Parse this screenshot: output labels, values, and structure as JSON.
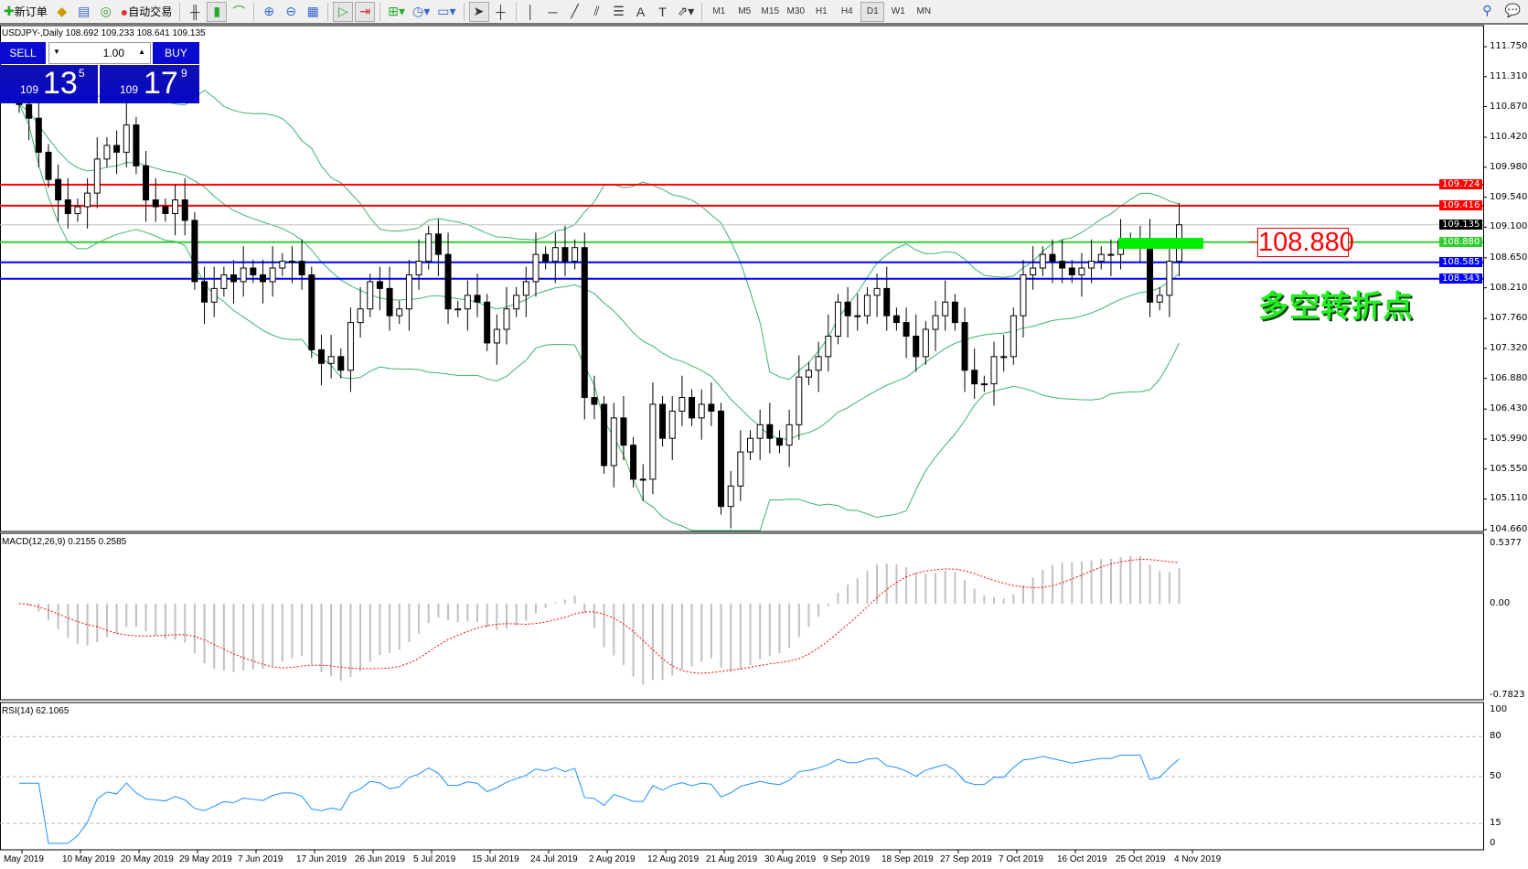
{
  "toolbar": {
    "new_order": "新订单",
    "auto_trading": "自动交易",
    "icons": [
      "new-order-icon",
      "market-watch-icon",
      "navigator-icon",
      "signals-icon",
      "auto-trading-icon",
      "bar-chart-icon",
      "candlestick-icon",
      "line-chart-icon",
      "zoom-in-icon",
      "zoom-out-icon",
      "tile-windows-icon",
      "auto-scroll-icon",
      "chart-shift-icon",
      "indicators-icon",
      "periods-icon",
      "templates-icon",
      "cursor-icon",
      "crosshair-icon",
      "vertical-line-icon",
      "horizontal-line-icon",
      "trendline-icon",
      "equidistant-channel-icon",
      "fibonacci-icon",
      "text-icon",
      "text-label-icon",
      "arrows-icon"
    ],
    "timeframes": [
      "M1",
      "M5",
      "M15",
      "M30",
      "H1",
      "H4",
      "D1",
      "W1",
      "MN"
    ],
    "active_timeframe": "D1"
  },
  "symbol_info": "USDJPY-,Daily  108.692 109.233 108.641 109.135",
  "trade_panel": {
    "sell": "SELL",
    "buy": "BUY",
    "lot": "1.00",
    "sell_price": {
      "prefix": "109",
      "big": "13",
      "sup": "5"
    },
    "buy_price": {
      "prefix": "109",
      "big": "17",
      "sup": "9"
    }
  },
  "colors": {
    "up": "#ffffff",
    "down": "#000000",
    "bands": "#3cb371",
    "macd_signal": "#ff0000",
    "macd_hist": "#c0c0c0",
    "rsi": "#1e90ff",
    "line_red": "#ff0000",
    "line_green": "#33cc33",
    "line_blue": "#0000ff"
  },
  "chart_data": {
    "type": "candlestick",
    "symbol": "USDJPY-",
    "timeframe": "Daily",
    "ylim": [
      104.66,
      111.75
    ],
    "price_ticks": [
      "111.750",
      "111.310",
      "110.870",
      "110.420",
      "109.980",
      "109.540",
      "109.100",
      "108.650",
      "108.210",
      "107.760",
      "107.320",
      "106.880",
      "106.430",
      "105.990",
      "105.550",
      "105.110",
      "104.660"
    ],
    "closes": [
      110.9,
      110.7,
      110.2,
      109.8,
      109.5,
      109.3,
      109.4,
      109.6,
      110.1,
      110.3,
      110.2,
      110.6,
      110.0,
      109.5,
      109.4,
      109.3,
      109.5,
      109.2,
      108.3,
      108.0,
      108.2,
      108.4,
      108.3,
      108.5,
      108.4,
      108.3,
      108.5,
      108.6,
      108.6,
      108.4,
      107.3,
      107.1,
      107.2,
      107.0,
      107.7,
      107.9,
      108.3,
      108.2,
      107.8,
      107.9,
      108.4,
      108.6,
      109.0,
      108.7,
      107.9,
      107.9,
      108.1,
      108.0,
      107.4,
      107.6,
      107.9,
      108.1,
      108.3,
      108.7,
      108.6,
      108.8,
      108.6,
      108.8,
      106.6,
      106.5,
      105.6,
      106.3,
      105.9,
      105.4,
      105.4,
      106.5,
      106.0,
      106.4,
      106.6,
      106.3,
      106.5,
      106.4,
      105.0,
      105.3,
      105.8,
      106.0,
      106.2,
      106.0,
      105.9,
      106.2,
      106.9,
      107.0,
      107.2,
      107.5,
      108.0,
      107.8,
      107.8,
      108.1,
      108.2,
      107.8,
      107.7,
      107.5,
      107.2,
      107.6,
      107.8,
      108.0,
      107.7,
      107.0,
      106.8,
      106.8,
      107.2,
      107.2,
      107.8,
      108.4,
      108.5,
      108.7,
      108.6,
      108.5,
      108.4,
      108.5,
      108.6,
      108.7,
      108.7,
      108.9,
      108.9,
      108.9,
      108.0,
      108.1,
      108.6,
      109.135
    ],
    "horizontal_lines": [
      {
        "price": 109.724,
        "label": "109.724",
        "color": "#ff0000"
      },
      {
        "price": 109.416,
        "label": "109.416",
        "color": "#ff0000"
      },
      {
        "price": 109.135,
        "label": "109.135",
        "color": "#000000"
      },
      {
        "price": 108.88,
        "label": "108.880",
        "color": "#33cc33"
      },
      {
        "price": 108.585,
        "label": "108.585",
        "color": "#0000ff"
      },
      {
        "price": 108.343,
        "label": "108.343",
        "color": "#0000ff"
      }
    ],
    "annotation_price": "108.880",
    "annotation_text": "多空转折点",
    "macd": {
      "label": "MACD(12,26,9) 0.2155 0.2585",
      "ticks": [
        "0.5377",
        "0.00",
        "-0.7823"
      ],
      "ylim": [
        -0.7823,
        0.5377
      ]
    },
    "rsi": {
      "label": "RSI(14) 62.1065",
      "ticks": [
        "100",
        "80",
        "50",
        "15",
        "0"
      ],
      "levels": [
        80,
        50,
        15
      ]
    },
    "dates": [
      "May 2019",
      "10 May 2019",
      "20 May 2019",
      "29 May 2019",
      "7 Jun 2019",
      "17 Jun 2019",
      "26 Jun 2019",
      "5 Jul 2019",
      "15 Jul 2019",
      "24 Jul 2019",
      "2 Aug 2019",
      "12 Aug 2019",
      "21 Aug 2019",
      "30 Aug 2019",
      "9 Sep 2019",
      "18 Sep 2019",
      "27 Sep 2019",
      "7 Oct 2019",
      "16 Oct 2019",
      "25 Oct 2019",
      "4 Nov 2019"
    ]
  }
}
